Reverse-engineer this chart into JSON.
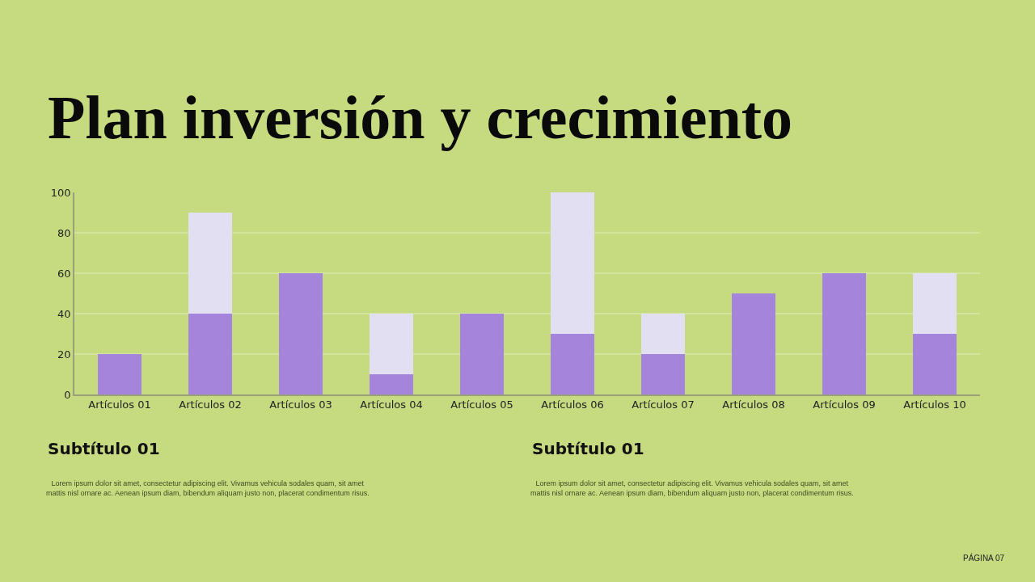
{
  "chart_data": {
    "type": "bar",
    "title": "Plan inversión y crecimiento",
    "categories": [
      "Artículos 01",
      "Artículos 02",
      "Artículos 03",
      "Artículos 04",
      "Artículos 05",
      "Artículos 06",
      "Artículos 07",
      "Artículos 08",
      "Artículos 09",
      "Artículos 10"
    ],
    "stacked": true,
    "series": [
      {
        "color": "#a585dc",
        "values": [
          20,
          40,
          60,
          10,
          40,
          30,
          20,
          50,
          60,
          30
        ]
      },
      {
        "color": "#e3dff2",
        "values": [
          0,
          50,
          0,
          30,
          0,
          70,
          20,
          0,
          0,
          30
        ]
      }
    ],
    "ylim": [
      0,
      100
    ],
    "yticks": [
      0,
      20,
      40,
      60,
      80,
      100
    ],
    "grid": "y",
    "annotations": [
      "Subtítulo 01",
      "Subtítulo 01",
      "Lorem ipsum dolor sit amet, consectetur adipiscing elit. Vivamus vehicula sodales quam, sit amet mattis nisl ornare ac. Aenean ipsum diam, bibendum aliquam justo non, placerat condimentum risus.",
      "Lorem ipsum dolor sit amet, consectetur adipiscing elit. Vivamus vehicula sodales quam, sit amet mattis nisl ornare ac. Aenean ipsum diam, bibendum aliquam justo non, placerat condimentum risus.",
      "PÁGINA 07"
    ]
  }
}
